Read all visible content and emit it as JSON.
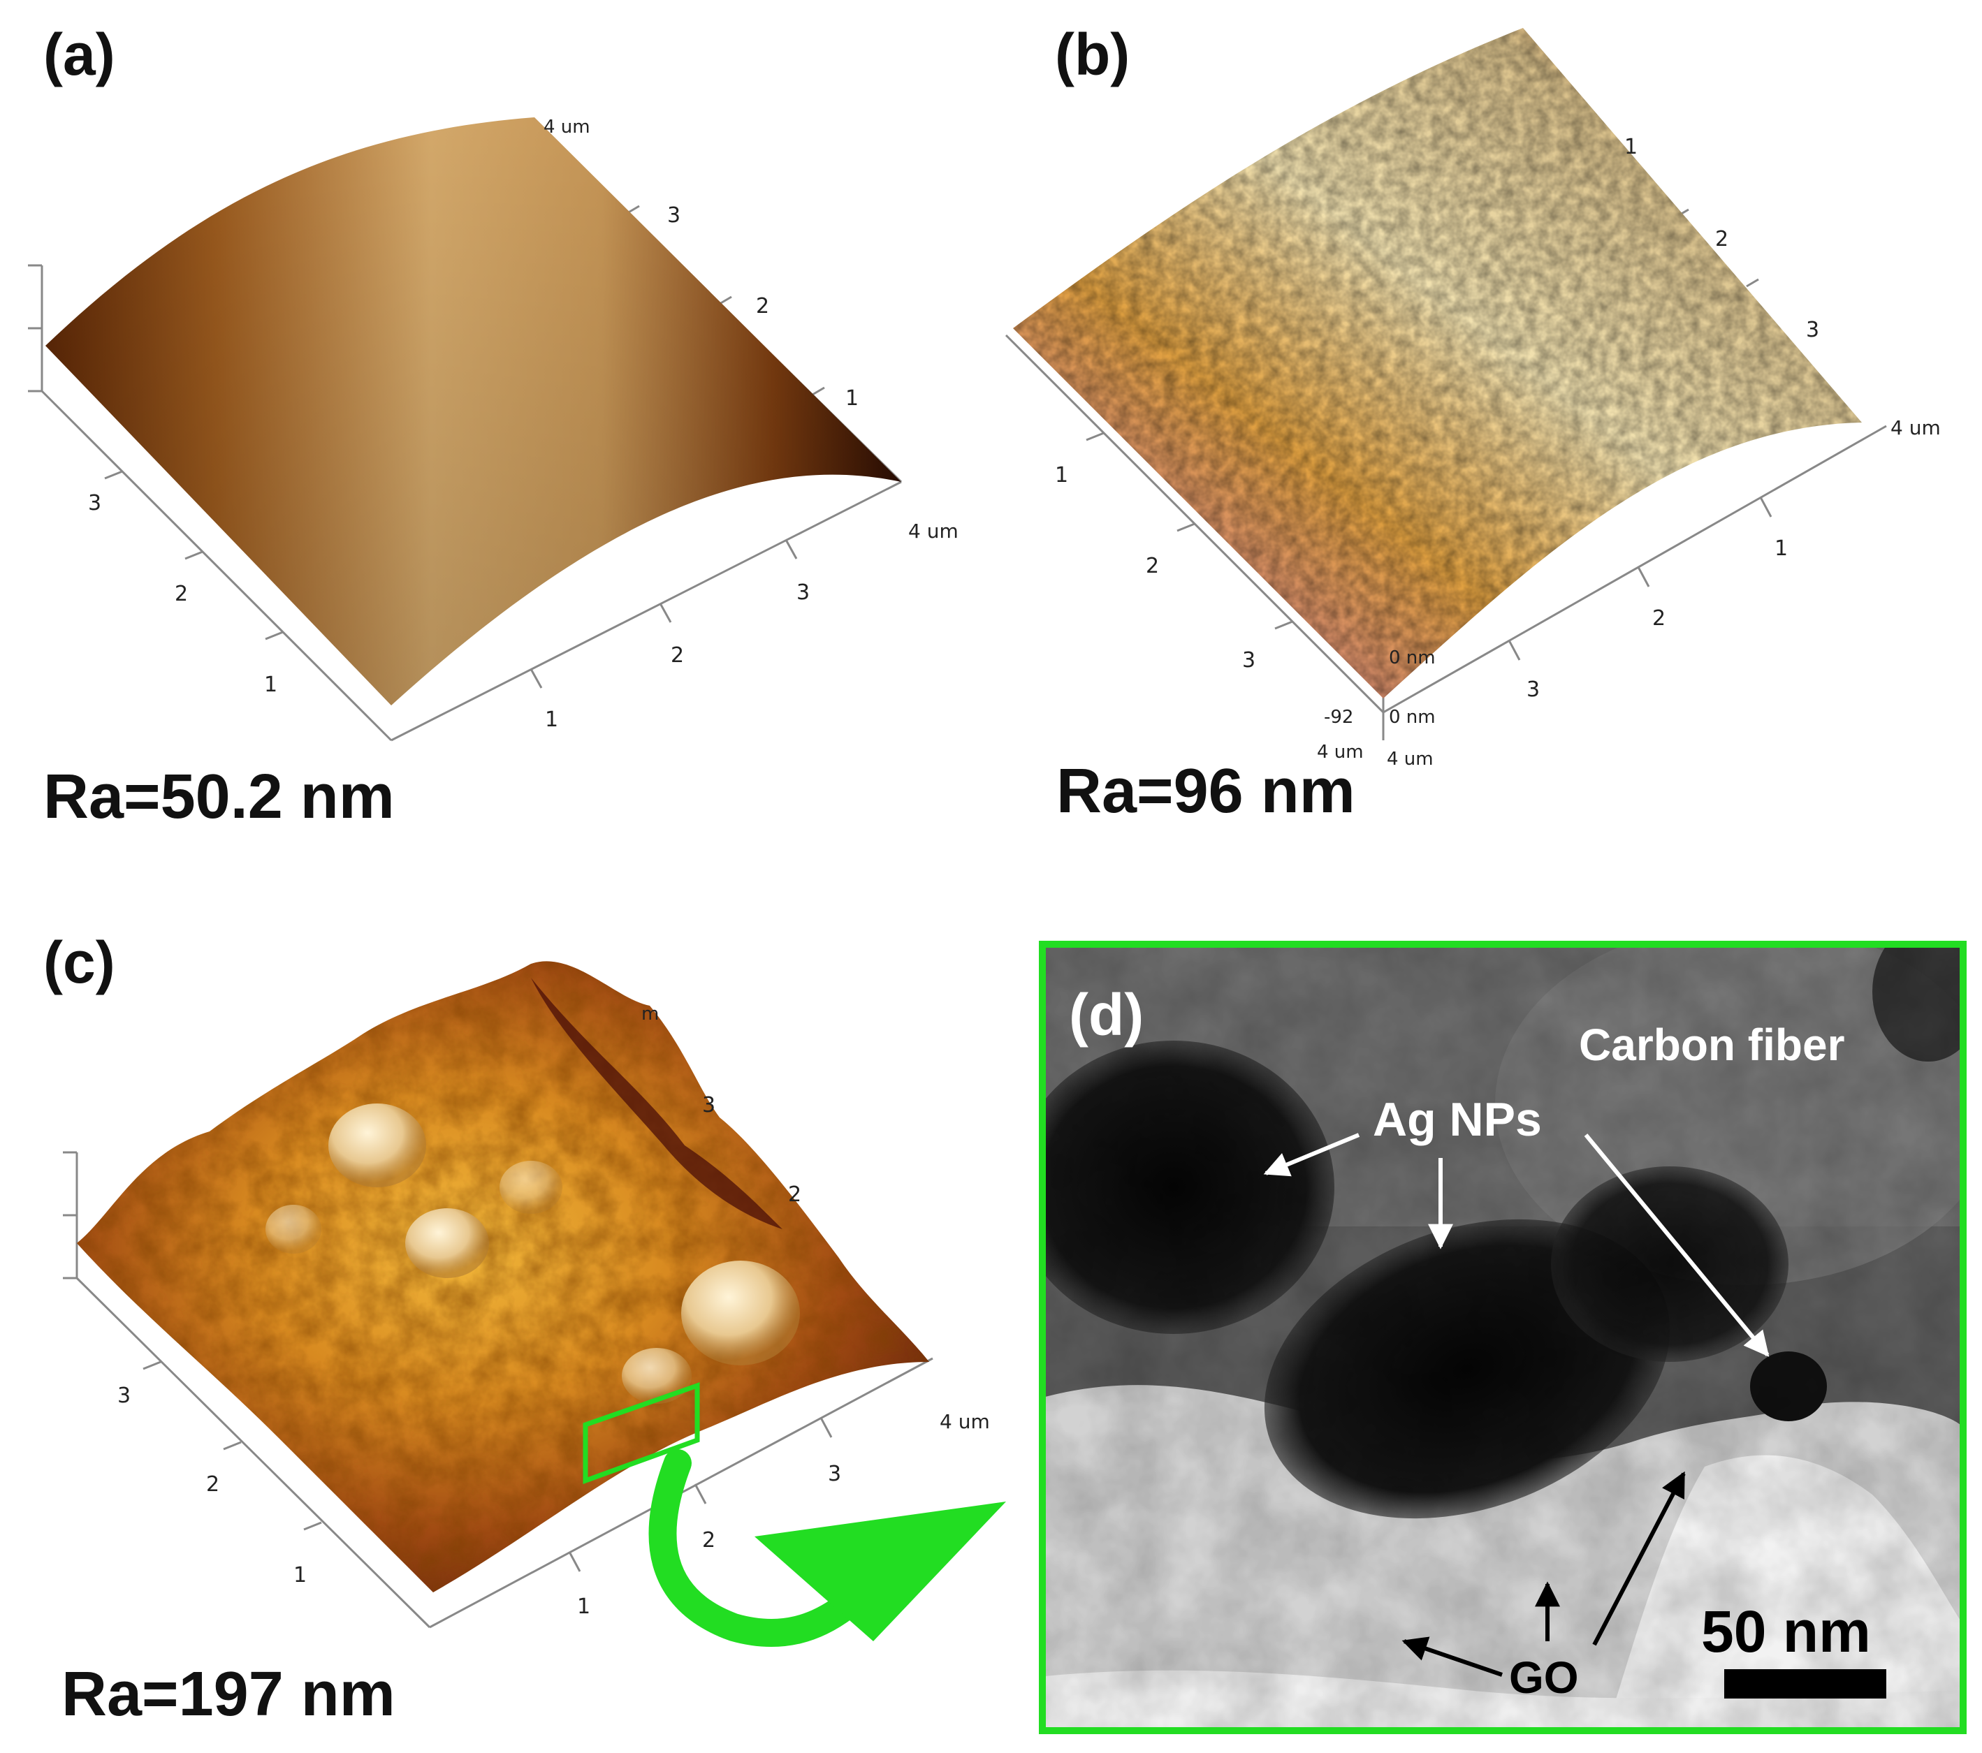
{
  "panels": {
    "a": {
      "letter": "(a)",
      "roughness": "Ra=50.2 nm",
      "ticks_right": [
        "1",
        "2",
        "3"
      ],
      "ticks_front": [
        "1",
        "2",
        "3"
      ],
      "ticks_left": [
        "1",
        "2",
        "3"
      ],
      "axis_end_top": "4 um",
      "axis_end_right": "4 um"
    },
    "b": {
      "letter": "(b)",
      "roughness": "Ra=96 nm",
      "ticks_right": [
        "1",
        "2",
        "3"
      ],
      "ticks_front": [
        "1",
        "2",
        "3"
      ],
      "ticks_left": [
        "1",
        "2",
        "3"
      ],
      "axis_end_right": "4 um",
      "axis_end_bottom_left": "4 um",
      "axis_end_bottom_right": "4 um",
      "z_label_top": "0 nm",
      "z_label_bottom": "-92",
      "z_label_bottom_unit": "0 nm"
    },
    "c": {
      "letter": "(c)",
      "roughness": "Ra=197 nm",
      "ticks_right": [
        "2",
        "3"
      ],
      "ticks_front": [
        "1",
        "2",
        "3"
      ],
      "ticks_left": [
        "1",
        "2",
        "3"
      ],
      "axis_end_right": "4 um",
      "axis_end_top": "m"
    },
    "d": {
      "letter": "(d)",
      "label_carbon_fiber": "Carbon fiber",
      "label_ag_nps": "Ag NPs",
      "label_go": "GO",
      "scale_bar": "50 nm"
    }
  },
  "colors": {
    "highlight_green": "#22dd22",
    "afm_light": "#f0d8a0",
    "afm_mid": "#c88a3c",
    "afm_dark": "#3a1604"
  }
}
